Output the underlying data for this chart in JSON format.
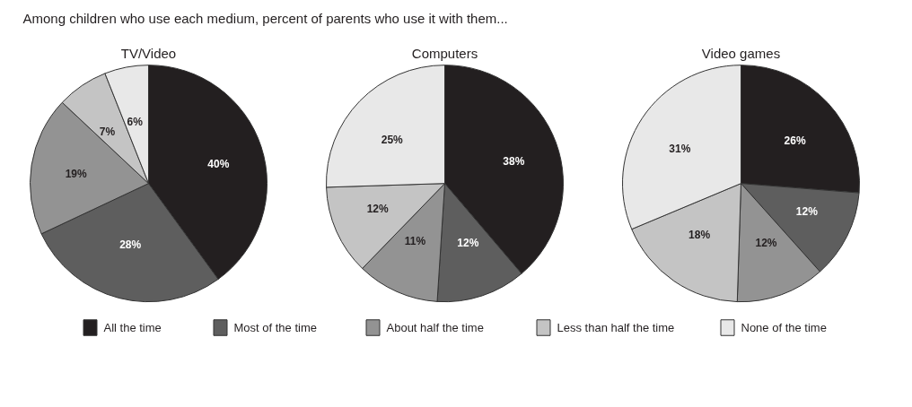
{
  "chart_data": [
    {
      "type": "pie",
      "title": "TV/Video",
      "annotations": [
        "Among children who use each medium, percent of parents who use it with them..."
      ],
      "legend": "bottom",
      "categories": [
        "All the time",
        "Most of the time",
        "About half the time",
        "Less than half the time",
        "None of the time"
      ],
      "values": [
        40,
        28,
        19,
        7,
        6
      ],
      "value_labels": [
        "40%",
        "28%",
        "19%",
        "7%",
        "6%"
      ],
      "colors": [
        "#231f20",
        "#5e5e5e",
        "#939393",
        "#c4c4c4",
        "#e8e8e8"
      ]
    },
    {
      "type": "pie",
      "title": "Computers",
      "categories": [
        null,
        null,
        null,
        null,
        null
      ],
      "values": [
        38,
        12,
        11,
        12,
        25
      ],
      "value_labels": [
        "38%",
        "12%",
        "11%",
        "12%",
        "25%"
      ],
      "colors": [
        "#231f20",
        "#5e5e5e",
        "#939393",
        "#c4c4c4",
        "#e8e8e8"
      ]
    },
    {
      "type": "pie",
      "title": "Video games",
      "categories": [
        null,
        null,
        null,
        null,
        null
      ],
      "values": [
        26,
        12,
        12,
        18,
        31
      ],
      "value_labels": [
        "26%",
        "12%",
        "12%",
        "18%",
        "31%"
      ],
      "colors": [
        "#231f20",
        "#5e5e5e",
        "#939393",
        "#c4c4c4",
        "#e8e8e8"
      ]
    }
  ]
}
